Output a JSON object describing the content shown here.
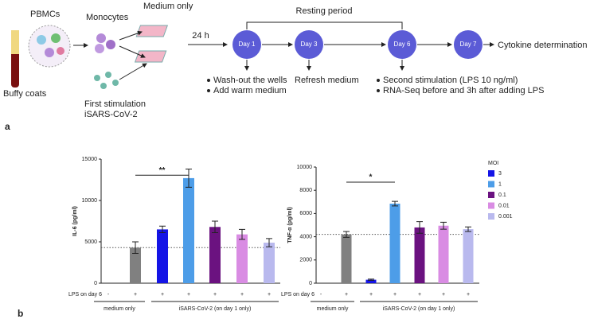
{
  "diagram": {
    "pbmcs": "PBMCs",
    "monocytes": "Monocytes",
    "medium_only": "Medium only",
    "time": "24 h",
    "resting": "Resting period",
    "days": [
      "Day 1",
      "Day 3",
      "Day 6",
      "Day 7"
    ],
    "cytokine": "Cytokine determination",
    "buffy": "Buffy coats",
    "first_stim": [
      "First stimulation",
      "iSARS-CoV-2"
    ],
    "day1_notes": [
      "Wash-out the wells",
      "Add warm medium"
    ],
    "day3_note": "Refresh medium",
    "day6_notes": [
      "Second stimulation (LPS 10 ng/ml)",
      "RNA-Seq before and 3h after adding LPS"
    ],
    "panel_a": "a",
    "panel_b": "b"
  },
  "chart_data": [
    {
      "type": "bar",
      "y_label": "IL-6 (pg/ml)",
      "x_label": "LPS on day 6",
      "categories": [
        "-",
        "+",
        "+",
        "+",
        "+",
        "+",
        "+"
      ],
      "values": [
        0,
        4300,
        6500,
        12700,
        6800,
        5900,
        4900
      ],
      "errors": [
        0,
        700,
        400,
        1100,
        700,
        600,
        500
      ],
      "colors": [
        "#808080",
        "#808080",
        "#1414e6",
        "#4d9de8",
        "#6b1280",
        "#d98ce3",
        "#b9b9ee"
      ],
      "ylim": [
        0,
        15000
      ],
      "yticks": [
        0,
        5000,
        10000,
        15000
      ],
      "reference_line": 4300,
      "significance": "**",
      "groups": [
        "medium only",
        "iSARS-CoV-2 (on day 1 only)"
      ]
    },
    {
      "type": "bar",
      "y_label": "TNF-α (pg/ml)",
      "x_label": "LPS on day 6",
      "categories": [
        "-",
        "+",
        "+",
        "+",
        "+",
        "+",
        "+"
      ],
      "values": [
        0,
        4200,
        300,
        6850,
        4800,
        4950,
        4650
      ],
      "errors": [
        0,
        250,
        50,
        200,
        500,
        300,
        200
      ],
      "colors": [
        "#808080",
        "#808080",
        "#1414e6",
        "#4d9de8",
        "#6b1280",
        "#d98ce3",
        "#b9b9ee"
      ],
      "ylim": [
        0,
        10000
      ],
      "yticks": [
        0,
        2000,
        4000,
        6000,
        8000,
        10000
      ],
      "reference_line": 4200,
      "significance": "*",
      "groups": [
        "medium only",
        "iSARS-CoV-2 (on day 1 only)"
      ],
      "legend": {
        "title": "MOI",
        "series": [
          {
            "name": "3",
            "color": "#1414e6"
          },
          {
            "name": "1",
            "color": "#4d9de8"
          },
          {
            "name": "0.1",
            "color": "#6b1280"
          },
          {
            "name": "0.01",
            "color": "#d98ce3"
          },
          {
            "name": "0.001",
            "color": "#b9b9ee"
          }
        ]
      }
    }
  ]
}
